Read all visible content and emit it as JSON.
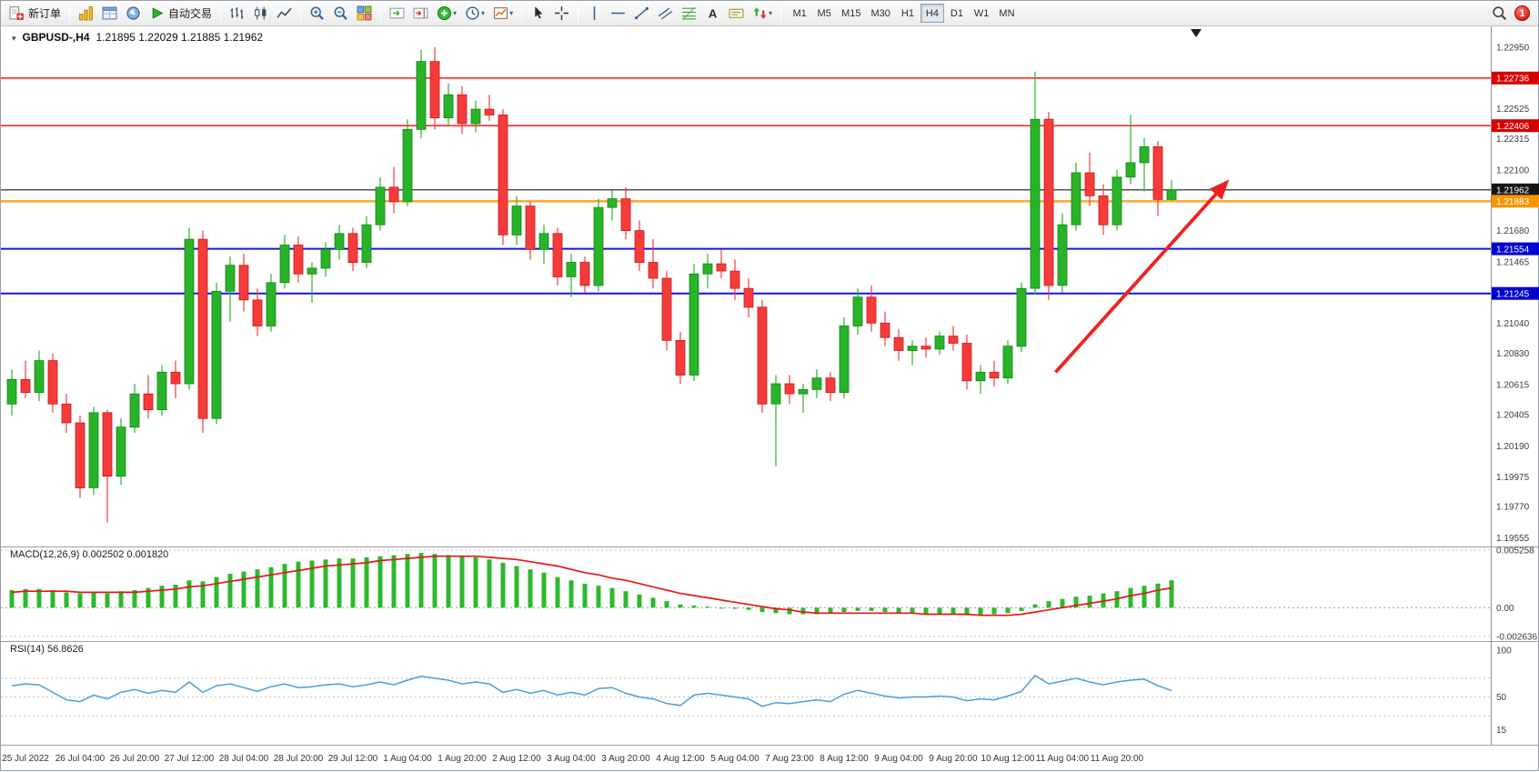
{
  "icons": {
    "collapse": "▾",
    "dropdown": "▾"
  },
  "toolbar": {
    "new_order": "新订单",
    "auto_trading": "自动交易",
    "timeframes": [
      "M1",
      "M5",
      "M15",
      "M30",
      "H1",
      "H4",
      "D1",
      "W1",
      "MN"
    ],
    "active_timeframe": "H4",
    "notification_count": "1"
  },
  "chart_data": [
    {
      "type": "candlestick",
      "title": "GBPUSD-,H4",
      "ohlc_display": "1.21895 1.22029 1.21885 1.21962",
      "ylim": [
        1.19538,
        1.23068
      ],
      "up_color": "#29b329",
      "up_border": "#128412",
      "down_color": "#f63b3b",
      "down_border": "#c41c1c",
      "candles": [
        [
          1.2048,
          1.2072,
          1.204,
          1.2065
        ],
        [
          1.2065,
          1.2078,
          1.2052,
          1.2056
        ],
        [
          1.2056,
          1.2085,
          1.205,
          1.2078
        ],
        [
          1.2078,
          1.2083,
          1.2042,
          1.2048
        ],
        [
          1.2048,
          1.2055,
          1.2028,
          1.2035
        ],
        [
          1.2035,
          1.204,
          1.1983,
          1.199
        ],
        [
          1.199,
          1.2046,
          1.1985,
          1.2042
        ],
        [
          1.2042,
          1.2044,
          1.1966,
          1.1998
        ],
        [
          1.1998,
          1.2038,
          1.1992,
          1.2032
        ],
        [
          1.2032,
          1.2062,
          1.2028,
          1.2055
        ],
        [
          1.2055,
          1.2068,
          1.2038,
          1.2044
        ],
        [
          1.2044,
          1.2075,
          1.204,
          1.207
        ],
        [
          1.207,
          1.2078,
          1.2052,
          1.2062
        ],
        [
          1.2062,
          1.217,
          1.2058,
          1.2162
        ],
        [
          1.2162,
          1.2168,
          1.2028,
          1.2038
        ],
        [
          1.2038,
          1.2132,
          1.2034,
          1.2126
        ],
        [
          1.2126,
          1.215,
          1.2105,
          1.2144
        ],
        [
          1.2144,
          1.2152,
          1.2112,
          1.212
        ],
        [
          1.212,
          1.2128,
          1.2095,
          1.2102
        ],
        [
          1.2102,
          1.2138,
          1.2098,
          1.2132
        ],
        [
          1.2132,
          1.2165,
          1.2128,
          1.2158
        ],
        [
          1.2158,
          1.2164,
          1.2132,
          1.2138
        ],
        [
          1.2138,
          1.2146,
          1.2118,
          1.2142
        ],
        [
          1.2142,
          1.216,
          1.2136,
          1.2155
        ],
        [
          1.2155,
          1.2172,
          1.2148,
          1.2166
        ],
        [
          1.2166,
          1.217,
          1.214,
          1.2146
        ],
        [
          1.2146,
          1.2178,
          1.2142,
          1.2172
        ],
        [
          1.2172,
          1.2205,
          1.2168,
          1.2198
        ],
        [
          1.2198,
          1.2212,
          1.218,
          1.2188
        ],
        [
          1.2188,
          1.2245,
          1.2185,
          1.2238
        ],
        [
          1.2238,
          1.2293,
          1.2232,
          1.2285
        ],
        [
          1.2285,
          1.2295,
          1.2238,
          1.2246
        ],
        [
          1.2246,
          1.227,
          1.224,
          1.2262
        ],
        [
          1.2262,
          1.2268,
          1.2235,
          1.2242
        ],
        [
          1.2242,
          1.2258,
          1.2236,
          1.2252
        ],
        [
          1.2252,
          1.2262,
          1.2244,
          1.2248
        ],
        [
          1.2248,
          1.2252,
          1.2158,
          1.2165
        ],
        [
          1.2165,
          1.2192,
          1.2158,
          1.2185
        ],
        [
          1.2185,
          1.2188,
          1.2148,
          1.2155
        ],
        [
          1.2155,
          1.2172,
          1.2145,
          1.2166
        ],
        [
          1.2166,
          1.217,
          1.213,
          1.2136
        ],
        [
          1.2136,
          1.2152,
          1.2122,
          1.2146
        ],
        [
          1.2146,
          1.215,
          1.2125,
          1.213
        ],
        [
          1.213,
          1.219,
          1.2126,
          1.2184
        ],
        [
          1.2184,
          1.2196,
          1.2175,
          1.219
        ],
        [
          1.219,
          1.2198,
          1.2162,
          1.2168
        ],
        [
          1.2168,
          1.2175,
          1.214,
          1.2146
        ],
        [
          1.2146,
          1.2162,
          1.2128,
          1.2135
        ],
        [
          1.2135,
          1.214,
          1.2085,
          1.2092
        ],
        [
          1.2092,
          1.2098,
          1.2062,
          1.2068
        ],
        [
          1.2068,
          1.2145,
          1.2064,
          1.2138
        ],
        [
          1.2138,
          1.2152,
          1.2128,
          1.2145
        ],
        [
          1.2145,
          1.2155,
          1.2135,
          1.214
        ],
        [
          1.214,
          1.2148,
          1.212,
          1.2128
        ],
        [
          1.2128,
          1.2135,
          1.2108,
          1.2115
        ],
        [
          1.2115,
          1.212,
          1.2042,
          1.2048
        ],
        [
          1.2048,
          1.2068,
          1.2005,
          1.2062
        ],
        [
          1.2062,
          1.2068,
          1.2048,
          1.2055
        ],
        [
          1.2055,
          1.2062,
          1.2042,
          1.2058
        ],
        [
          1.2058,
          1.2072,
          1.2052,
          1.2066
        ],
        [
          1.2066,
          1.207,
          1.205,
          1.2056
        ],
        [
          1.2056,
          1.2108,
          1.2052,
          1.2102
        ],
        [
          1.2102,
          1.2128,
          1.2096,
          1.2122
        ],
        [
          1.2122,
          1.213,
          1.2098,
          1.2104
        ],
        [
          1.2104,
          1.2112,
          1.2088,
          1.2094
        ],
        [
          1.2094,
          1.21,
          1.2078,
          1.2085
        ],
        [
          1.2085,
          1.2092,
          1.2075,
          1.2088
        ],
        [
          1.2088,
          1.2094,
          1.208,
          1.2086
        ],
        [
          1.2086,
          1.2098,
          1.2082,
          1.2095
        ],
        [
          1.2095,
          1.2102,
          1.2085,
          1.209
        ],
        [
          1.209,
          1.2096,
          1.2058,
          1.2064
        ],
        [
          1.2064,
          1.2075,
          1.2055,
          1.207
        ],
        [
          1.207,
          1.2078,
          1.206,
          1.2066
        ],
        [
          1.2066,
          1.2092,
          1.2062,
          1.2088
        ],
        [
          1.2088,
          1.2132,
          1.2084,
          1.2128
        ],
        [
          1.2128,
          1.2278,
          1.2124,
          1.2245
        ],
        [
          1.2245,
          1.225,
          1.212,
          1.213
        ],
        [
          1.213,
          1.218,
          1.2125,
          1.2172
        ],
        [
          1.2172,
          1.2215,
          1.2168,
          1.2208
        ],
        [
          1.2208,
          1.2222,
          1.2185,
          1.2192
        ],
        [
          1.2192,
          1.22,
          1.2165,
          1.2172
        ],
        [
          1.2172,
          1.221,
          1.2168,
          1.2205
        ],
        [
          1.2205,
          1.2248,
          1.22,
          1.2215
        ],
        [
          1.2215,
          1.2232,
          1.2195,
          1.2226
        ],
        [
          1.2226,
          1.223,
          1.2178,
          1.21895
        ],
        [
          1.21895,
          1.22029,
          1.21885,
          1.21962
        ]
      ],
      "hlines": [
        {
          "price": 1.22736,
          "label": "1.22736",
          "color": "#ff2a2a",
          "label_bg": "#d60000",
          "width": 1.6
        },
        {
          "price": 1.22406,
          "label": "1.22406",
          "color": "#ff2a2a",
          "label_bg": "#d60000",
          "width": 1.6
        },
        {
          "price": 1.21962,
          "label": "1.21962",
          "color": "#151515",
          "label_bg": "#151515",
          "width": 1.1
        },
        {
          "price": 1.21883,
          "label": "1.21883",
          "color": "#ffa51e",
          "label_bg": "#f79400",
          "width": 2.4
        },
        {
          "price": 1.21554,
          "label": "1.21554",
          "color": "#1414e6",
          "label_bg": "#0000d0",
          "width": 2.0
        },
        {
          "price": 1.21245,
          "label": "1.21245",
          "color": "#1414e6",
          "label_bg": "#0000d0",
          "width": 2.0
        }
      ],
      "y_axis_labels": [
        "1.22950",
        "1.22525",
        "1.22315",
        "1.22100",
        "1.21680",
        "1.21465",
        "1.21040",
        "1.20830",
        "1.20615",
        "1.20405",
        "1.20190",
        "1.19975",
        "1.19770",
        "1.19555"
      ],
      "x_labels": [
        "25 Jul 2022",
        "26 Jul 04:00",
        "26 Jul 20:00",
        "27 Jul 12:00",
        "28 Jul 04:00",
        "28 Jul 20:00",
        "29 Jul 12:00",
        "1 Aug 04:00",
        "1 Aug 20:00",
        "2 Aug 12:00",
        "3 Aug 04:00",
        "3 Aug 20:00",
        "4 Aug 12:00",
        "5 Aug 04:00",
        "7 Aug 23:00",
        "8 Aug 12:00",
        "9 Aug 04:00",
        "9 Aug 20:00",
        "10 Aug 12:00",
        "11 Aug 04:00",
        "11 Aug 20:00"
      ],
      "label_start_index": 1,
      "label_step": 4,
      "arrow": {
        "from_index": 76.5,
        "from_price": 1.207,
        "to_index": 89,
        "to_price": 1.2201,
        "color": "#ee2222"
      },
      "shift_marker_index": 86.8
    },
    {
      "type": "bar",
      "name": "MACD",
      "label": "MACD(12,26,9) 0.002502 0.001820",
      "ylim": [
        -0.002636,
        0.005258
      ],
      "axis_labels": [
        "0.005258",
        "0.00",
        "-0.002636"
      ],
      "histogram_color": "#2db82d",
      "signal_color": "#e81717",
      "histogram": [
        0.0016,
        0.0017,
        0.0017,
        0.0016,
        0.0014,
        0.0013,
        0.0014,
        0.0013,
        0.0015,
        0.0016,
        0.0018,
        0.002,
        0.0021,
        0.0025,
        0.0024,
        0.0028,
        0.0031,
        0.0033,
        0.0035,
        0.0037,
        0.004,
        0.0042,
        0.0043,
        0.0044,
        0.0045,
        0.0045,
        0.0046,
        0.0047,
        0.0048,
        0.0049,
        0.005,
        0.0049,
        0.0048,
        0.0047,
        0.0046,
        0.0044,
        0.0041,
        0.0038,
        0.0035,
        0.0032,
        0.0028,
        0.0025,
        0.0022,
        0.002,
        0.0018,
        0.0015,
        0.0012,
        0.0009,
        0.0006,
        0.0003,
        0.0002,
        0.0001,
        0.0,
        -0.0001,
        -0.0002,
        -0.0004,
        -0.0005,
        -0.0006,
        -0.0006,
        -0.0006,
        -0.0005,
        -0.0004,
        -0.0003,
        -0.0003,
        -0.0004,
        -0.0005,
        -0.0005,
        -0.0006,
        -0.0006,
        -0.0006,
        -0.0007,
        -0.0007,
        -0.0006,
        -0.0005,
        -0.0003,
        0.0003,
        0.0006,
        0.0008,
        0.001,
        0.0011,
        0.0013,
        0.0015,
        0.0018,
        0.002,
        0.0022,
        0.0025
      ],
      "signal": [
        0.0014,
        0.0015,
        0.0015,
        0.0015,
        0.0015,
        0.0014,
        0.0014,
        0.0014,
        0.0014,
        0.0014,
        0.0015,
        0.0016,
        0.0017,
        0.0019,
        0.002,
        0.0022,
        0.0024,
        0.0026,
        0.0028,
        0.003,
        0.0032,
        0.0034,
        0.0036,
        0.0038,
        0.0039,
        0.004,
        0.0041,
        0.0043,
        0.0044,
        0.0045,
        0.0046,
        0.0047,
        0.0047,
        0.0047,
        0.0047,
        0.0046,
        0.0045,
        0.0044,
        0.0042,
        0.004,
        0.0038,
        0.0035,
        0.0032,
        0.003,
        0.0027,
        0.0025,
        0.0022,
        0.0019,
        0.0016,
        0.0013,
        0.0011,
        0.0009,
        0.0007,
        0.0005,
        0.0003,
        0.0001,
        -0.0001,
        -0.0002,
        -0.0004,
        -0.0005,
        -0.0005,
        -0.0005,
        -0.0005,
        -0.0005,
        -0.0005,
        -0.0005,
        -0.0005,
        -0.0006,
        -0.0006,
        -0.0006,
        -0.0006,
        -0.0007,
        -0.0007,
        -0.0007,
        -0.0006,
        -0.0004,
        -0.0002,
        0.0,
        0.0002,
        0.0004,
        0.0006,
        0.0008,
        0.0011,
        0.0013,
        0.0016,
        0.0018
      ]
    },
    {
      "type": "line",
      "name": "RSI",
      "label": "RSI(14) 56.8626",
      "ylim": [
        0,
        100
      ],
      "axis_labels": [
        "100",
        "50",
        "15"
      ],
      "levels": [
        70,
        50,
        30
      ],
      "line_color": "#4a9edc",
      "values": [
        62,
        64,
        63,
        55,
        47,
        45,
        52,
        48,
        55,
        58,
        54,
        57,
        55,
        66,
        55,
        62,
        64,
        60,
        56,
        61,
        64,
        60,
        61,
        63,
        64,
        61,
        63,
        66,
        63,
        68,
        72,
        70,
        68,
        64,
        66,
        64,
        55,
        58,
        54,
        57,
        52,
        55,
        52,
        59,
        60,
        54,
        50,
        48,
        43,
        41,
        52,
        54,
        52,
        50,
        48,
        40,
        44,
        43,
        45,
        47,
        45,
        53,
        57,
        54,
        51,
        49,
        50,
        50,
        51,
        50,
        46,
        48,
        47,
        51,
        56,
        73,
        64,
        67,
        70,
        66,
        63,
        66,
        68,
        69,
        62,
        56.86
      ]
    }
  ]
}
